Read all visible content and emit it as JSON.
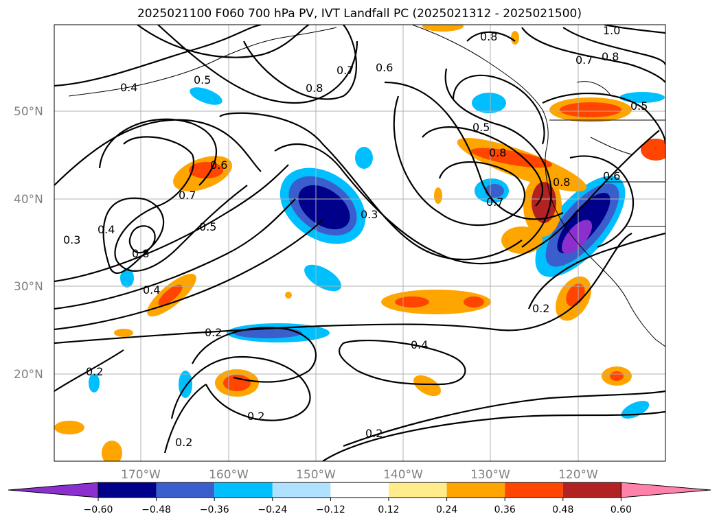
{
  "title": "2025021100 F060 700 hPa PV, IVT Landfall PC (2025021312 - 2025021500)",
  "lat_labels": [
    "50°N",
    "40°N",
    "30°N",
    "20°N"
  ],
  "lon_labels": [
    "170°W",
    "160°W",
    "150°W",
    "140°W",
    "130°W",
    "120°W"
  ],
  "colorbar": {
    "ticks": [
      "−0.60",
      "−0.48",
      "−0.36",
      "−0.24",
      "−0.12",
      "0.12",
      "0.24",
      "0.36",
      "0.48",
      "0.60"
    ],
    "colors": [
      "#8b2fcf",
      "#00008b",
      "#3a5fcd",
      "#00bfff",
      "#b0e2ff",
      "#ffffff",
      "#ffec8b",
      "#ffa500",
      "#ff4500",
      "#b22222",
      "#ff82ab"
    ]
  },
  "contour_labels": [
    "0.4",
    "0.5",
    "0.7",
    "0.8",
    "0.6",
    "0.8",
    "1.0",
    "0.7",
    "0.8",
    "0.5",
    "0.5",
    "0.8",
    "0.8",
    "0.6",
    "0.7",
    "0.6",
    "0.7",
    "0.5",
    "0.3",
    "0.4",
    "0.3",
    "0.8",
    "0.4",
    "0.2",
    "0.2",
    "0.4",
    "0.2",
    "0.2",
    "0.2",
    "0.2"
  ]
}
